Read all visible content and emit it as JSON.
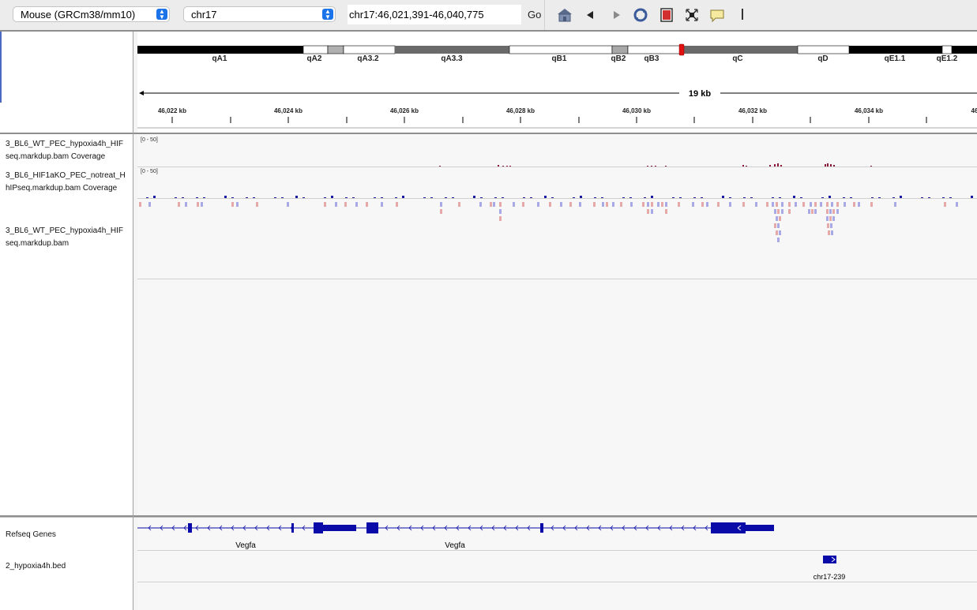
{
  "toolbar": {
    "genome": "Mouse (GRCm38/mm10)",
    "chromosome": "chr17",
    "locus": "chr17:46,021,391-46,040,775",
    "go_label": "Go"
  },
  "ideogram": {
    "bands": [
      "qA1",
      "qA2",
      "qA3.2",
      "qA3.3",
      "qB1",
      "qB2",
      "qB3",
      "qC",
      "qD",
      "qE1.1",
      "qE1.2"
    ]
  },
  "ruler": {
    "span_label": "19 kb",
    "ticks": [
      "46,022 kb",
      "46,024 kb",
      "46,026 kb",
      "46,028 kb",
      "46,030 kb",
      "46,032 kb",
      "46,034 kb",
      "46"
    ]
  },
  "tracks": {
    "coverage1_name_line1": "3_BL6_WT_PEC_hypoxia4h_HIF",
    "coverage1_name_line2": "seq.markdup.bam Coverage",
    "coverage1_range": "[0 - 50]",
    "coverage2_name_line1": "3_BL6_HIF1aKO_PEC_notreat_H",
    "coverage2_name_line2": "hIPseq.markdup.bam Coverage",
    "coverage2_range": "[0 - 50]",
    "alignment_name_line1": "3_BL6_WT_PEC_hypoxia4h_HIF",
    "alignment_name_line2": "seq.markdup.bam"
  },
  "features": {
    "refseq_name": "Refseq Genes",
    "gene_labels": [
      "Vegfa",
      "Vegfa"
    ],
    "bed_name": "2_hypoxia4h.bed",
    "bed_feature_label": "chr17-239"
  },
  "colors": {
    "coverage1": "#8b1a3a",
    "coverage2": "#1a1a9c",
    "read_forward": "#e6a9a9",
    "read_reverse": "#a9a9e6",
    "gene": "#0a0aa8",
    "centromere": "#e01010"
  }
}
